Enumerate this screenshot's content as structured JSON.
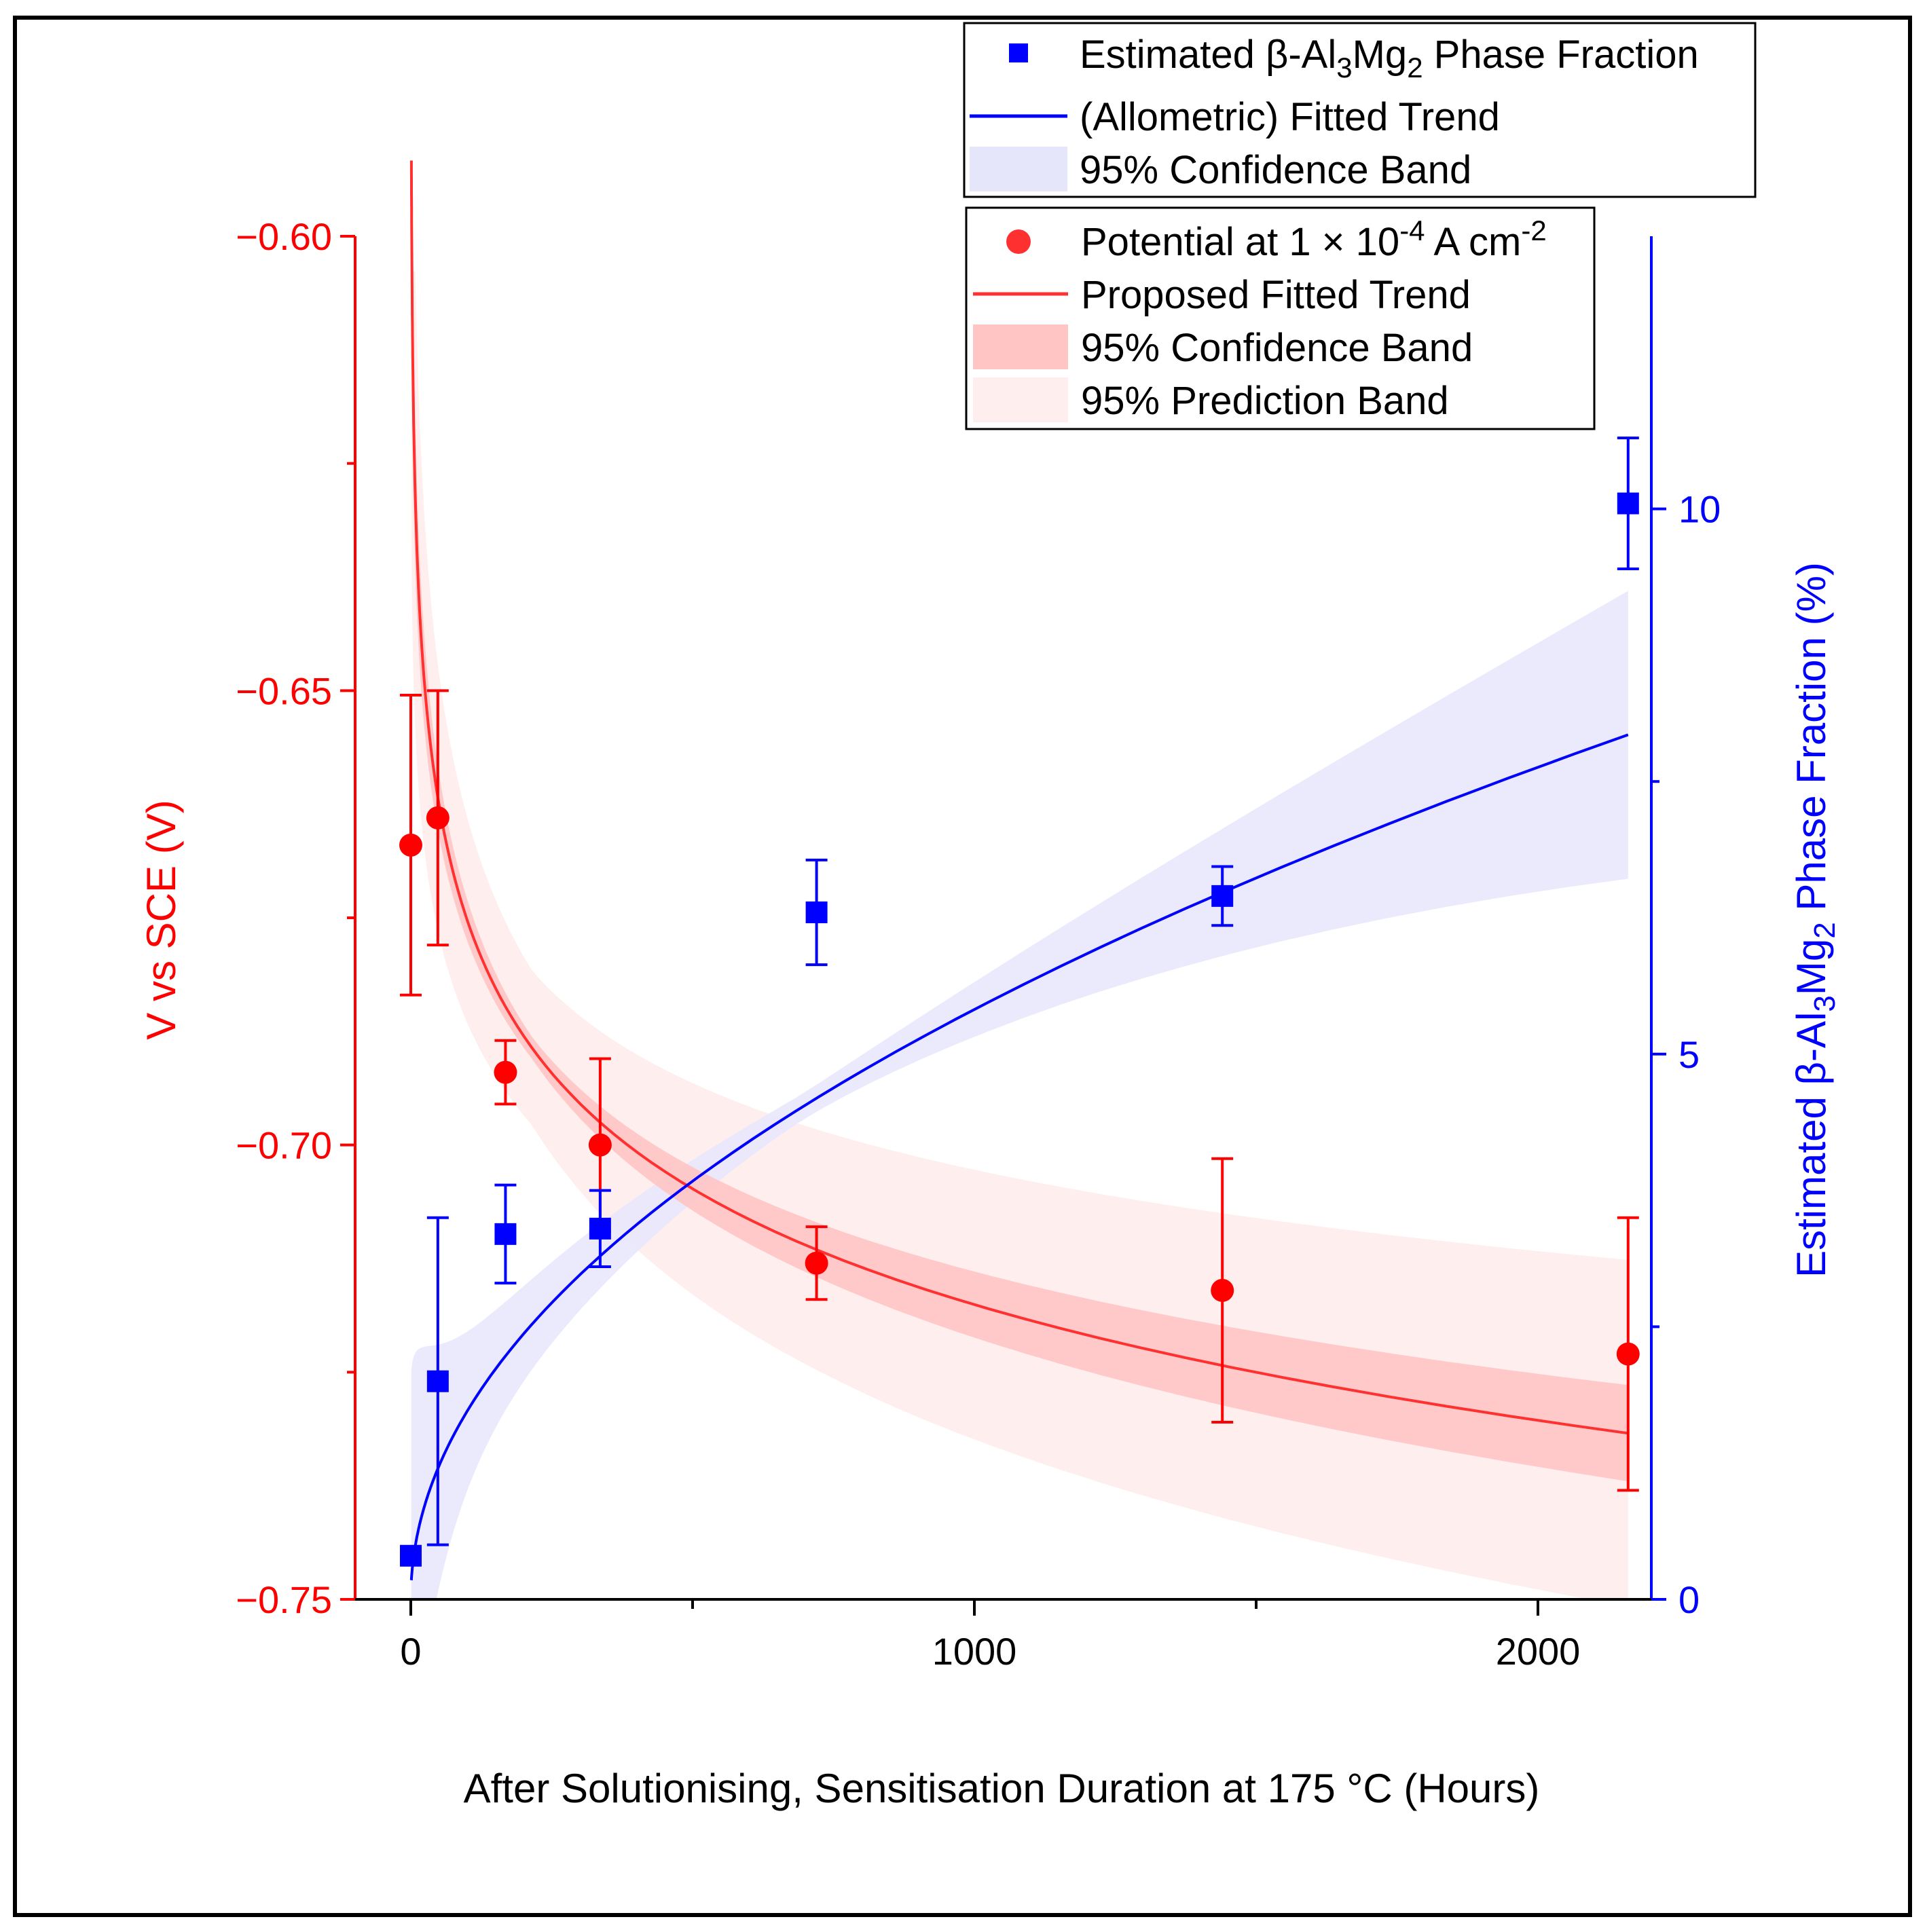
{
  "chart_data": {
    "type": "scatter",
    "xlabel": "After Solutionising, Sensitisation Duration at 175 °C (Hours)",
    "ylabel_left": "V vs SCE (V)",
    "ylabel_right": {
      "prefix": "Estimated β-Al",
      "sub1": "3",
      "mid": "Mg",
      "sub2": "2",
      "suffix": " Phase Fraction (%)"
    },
    "xlim": [
      -100,
      2250
    ],
    "ylim_left": [
      -0.75,
      -0.6
    ],
    "ylim_right": [
      0,
      12.5
    ],
    "x_ticks": [
      {
        "value": 0,
        "label": "0"
      },
      {
        "value": 1000,
        "label": "1000"
      },
      {
        "value": 2000,
        "label": "2000"
      }
    ],
    "x_minor_ticks": [
      500,
      1500
    ],
    "y_left_ticks": [
      {
        "value": -0.6,
        "label": "−0.60"
      },
      {
        "value": -0.65,
        "label": "−0.65"
      },
      {
        "value": -0.7,
        "label": "−0.70"
      },
      {
        "value": -0.75,
        "label": "−0.75"
      }
    ],
    "y_left_minor_ticks": [
      -0.625,
      -0.675,
      -0.725
    ],
    "y_right_ticks": [
      {
        "value": 0,
        "label": "0"
      },
      {
        "value": 5,
        "label": "5"
      },
      {
        "value": 10,
        "label": "10"
      }
    ],
    "y_right_minor_ticks": [
      2.5,
      7.5
    ],
    "series": [
      {
        "name": "Potential at 1 × 10-4 A cm-2",
        "axis": "left",
        "marker": "circle",
        "color": "#ff0000",
        "x": [
          0,
          48,
          168,
          336,
          720,
          1440,
          2160
        ],
        "y": [
          -0.667,
          -0.664,
          -0.692,
          -0.7,
          -0.713,
          -0.716,
          -0.723
        ],
        "err": [
          0.0165,
          0.014,
          0.0035,
          0.0095,
          0.004,
          0.0145,
          0.015
        ]
      },
      {
        "name": "Estimated β-Al3Mg2 Phase Fraction",
        "axis": "right",
        "marker": "square",
        "color": "#0000ff",
        "x": [
          0,
          48,
          168,
          336,
          720,
          1440,
          2160
        ],
        "y": [
          0.4,
          2.0,
          3.35,
          3.4,
          6.3,
          6.45,
          10.05
        ],
        "err": [
          0.0,
          1.5,
          0.45,
          0.35,
          0.48,
          0.27,
          0.6
        ]
      }
    ],
    "fits": {
      "proposed_red": {
        "name": "Proposed Fitted Trend",
        "color": "#ff3030",
        "x_start": 1,
        "x_end": 2160
      },
      "allometric_blue": {
        "name": "(Allometric) Fitted Trend",
        "color": "#0000ff",
        "x_start": 1,
        "x_end": 2160
      }
    },
    "legends": {
      "blue_legend": {
        "marker_label": {
          "prefix": "Estimated β-Al",
          "sub1": "3",
          "mid": "Mg",
          "sub2": "2",
          "suffix": " Phase Fraction"
        },
        "line_label": "(Allometric) Fitted Trend",
        "band_label": "95% Confidence Band"
      },
      "red_legend": {
        "marker_label": {
          "prefix": "Potential at 1 × 10",
          "sup1": "-4",
          "mid": " A cm",
          "sup2": "-2"
        },
        "line_label": "Proposed Fitted Trend",
        "conf_label": "95% Confidence Band",
        "pred_label": "95% Prediction Band"
      }
    },
    "colors": {
      "red": "#ff0000",
      "red_line": "#ff3030",
      "blue": "#0000ff",
      "red_conf_band": "#ffc4c4",
      "red_pred_band": "#ffeeee",
      "blue_conf_band": "#e6e6fb"
    }
  }
}
